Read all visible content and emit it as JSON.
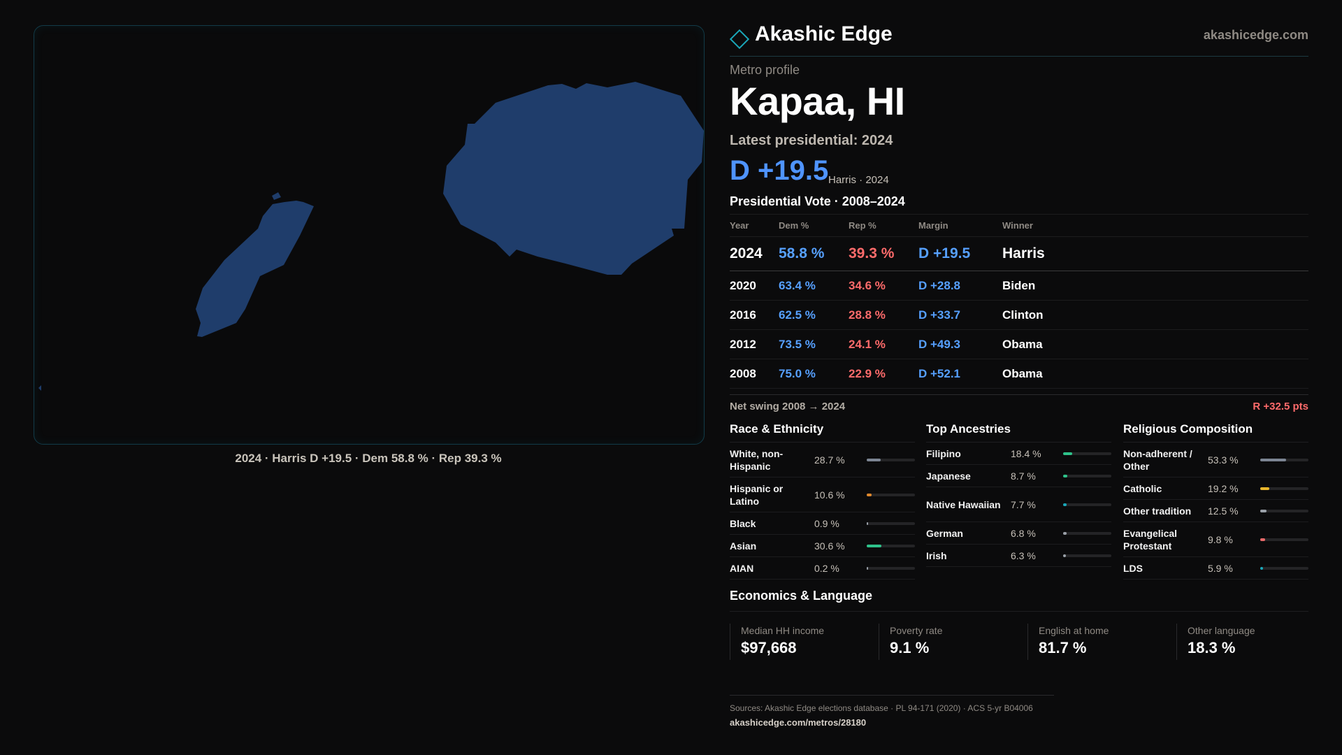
{
  "map": {
    "caption": "2024 · Harris D +19.5 · Dem 58.8 % · Rep 39.3 %",
    "fill_color": "#1f3d6b"
  },
  "header": {
    "brand": "Akashic Edge",
    "domain": "akashicedge.com"
  },
  "profile": {
    "kicker": "Metro profile",
    "title": "Kapaa, HI",
    "latest": "Latest presidential: 2024",
    "margin": "D +19.5",
    "margin_sub": "Harris · 2024"
  },
  "votes": {
    "title": "Presidential Vote · 2008–2024",
    "headers": {
      "year": "Year",
      "dem": "Dem %",
      "rep": "Rep %",
      "margin": "Margin",
      "winner": "Winner"
    },
    "rows": [
      {
        "year": "2024",
        "dem": "58.8 %",
        "rep": "39.3 %",
        "margin": "D +19.5",
        "winner": "Harris"
      },
      {
        "year": "2020",
        "dem": "63.4 %",
        "rep": "34.6 %",
        "margin": "D +28.8",
        "winner": "Biden"
      },
      {
        "year": "2016",
        "dem": "62.5 %",
        "rep": "28.8 %",
        "margin": "D +33.7",
        "winner": "Clinton"
      },
      {
        "year": "2012",
        "dem": "73.5 %",
        "rep": "24.1 %",
        "margin": "D +49.3",
        "winner": "Obama"
      },
      {
        "year": "2008",
        "dem": "75.0 %",
        "rep": "22.9 %",
        "margin": "D +52.1",
        "winner": "Obama"
      }
    ],
    "swing_label": "Net swing 2008 → 2024",
    "swing_value": "R +32.5 pts"
  },
  "race": {
    "title": "Race & Ethnicity",
    "items": [
      {
        "label": "White, non-Hispanic",
        "pct": "28.7 %",
        "value": 28.7,
        "color": "#7c8593"
      },
      {
        "label": "Hispanic or Latino",
        "pct": "10.6 %",
        "value": 10.6,
        "color": "#e0892c"
      },
      {
        "label": "Black",
        "pct": "0.9 %",
        "value": 0.9,
        "color": "#9aa0a8"
      },
      {
        "label": "Asian",
        "pct": "30.6 %",
        "value": 30.6,
        "color": "#2ec28a"
      },
      {
        "label": "AIAN",
        "pct": "0.2 %",
        "value": 0.2,
        "color": "#9aa0a8"
      }
    ]
  },
  "ancestry": {
    "title": "Top Ancestries",
    "items": [
      {
        "label": "Filipino",
        "pct": "18.4 %",
        "value": 18.4,
        "color": "#2ec28a"
      },
      {
        "label": "Japanese",
        "pct": "8.7 %",
        "value": 8.7,
        "color": "#2ec28a"
      },
      {
        "label": "Native Hawaiian",
        "pct": "7.7 %",
        "value": 7.7,
        "color": "#1aa7b9"
      },
      {
        "label": "German",
        "pct": "6.8 %",
        "value": 6.8,
        "color": "#9aa0a8"
      },
      {
        "label": "Irish",
        "pct": "6.3 %",
        "value": 6.3,
        "color": "#9aa0a8"
      }
    ]
  },
  "religion": {
    "title": "Religious Composition",
    "items": [
      {
        "label": "Non-adherent / Other",
        "pct": "53.3 %",
        "value": 53.3,
        "color": "#7c8593"
      },
      {
        "label": "Catholic",
        "pct": "19.2 %",
        "value": 19.2,
        "color": "#e8b62c"
      },
      {
        "label": "Other tradition",
        "pct": "12.5 %",
        "value": 12.5,
        "color": "#9aa0a8"
      },
      {
        "label": "Evangelical Protestant",
        "pct": "9.8 %",
        "value": 9.8,
        "color": "#e86a6a"
      },
      {
        "label": "LDS",
        "pct": "5.9 %",
        "value": 5.9,
        "color": "#1aa7b9"
      }
    ]
  },
  "economics": {
    "title": "Economics & Language",
    "cards": [
      {
        "label": "Median HH income",
        "value": "$97,668"
      },
      {
        "label": "Poverty rate",
        "value": "9.1 %"
      },
      {
        "label": "English at home",
        "value": "81.7 %"
      },
      {
        "label": "Other language",
        "value": "18.3 %"
      }
    ]
  },
  "footer": {
    "sources": "Sources: Akashic Edge elections database · PL 94-171 (2020) · ACS 5-yr B04006",
    "url": "akashicedge.com/metros/28180"
  }
}
